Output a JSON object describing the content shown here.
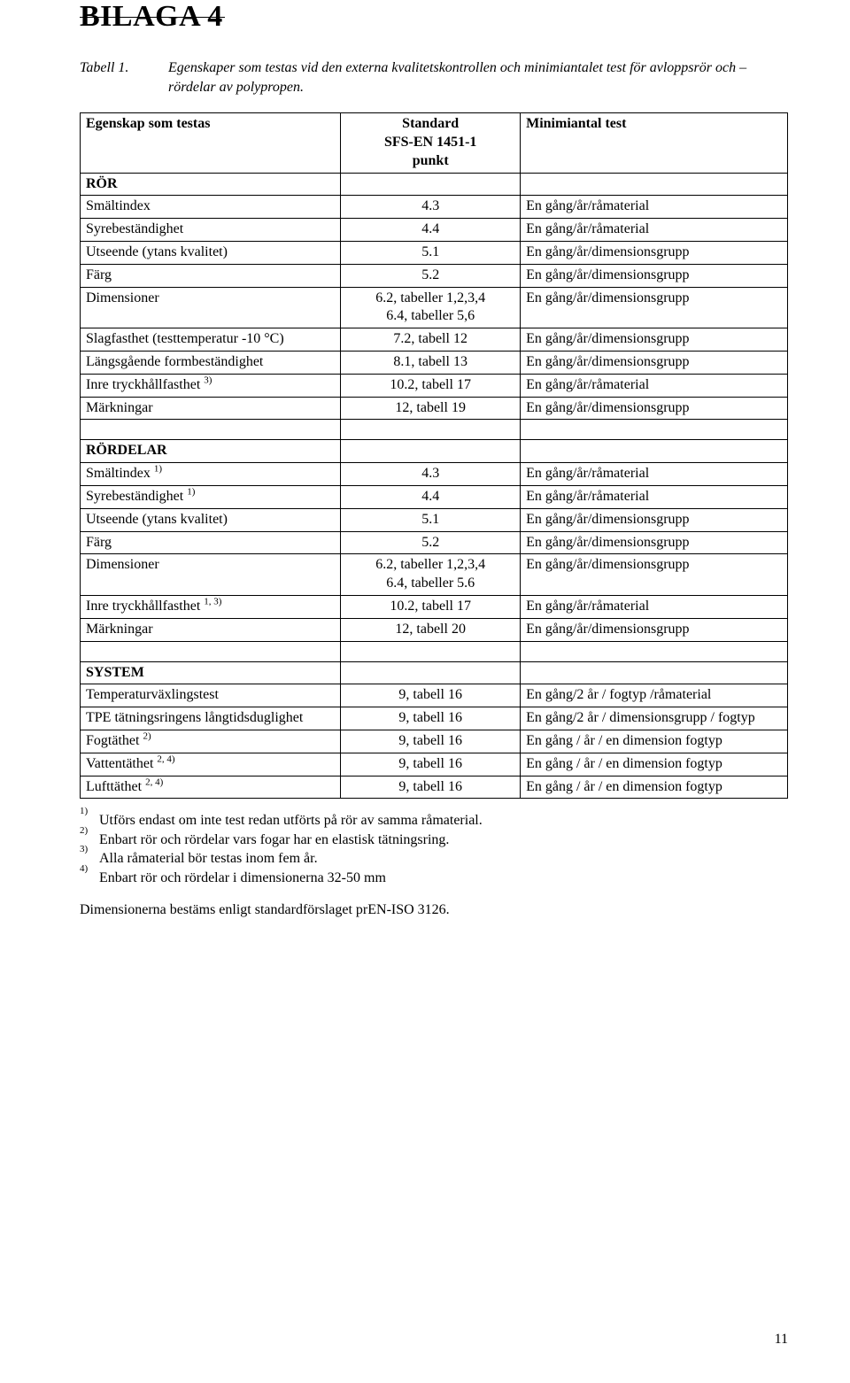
{
  "colors": {
    "text": "#000000",
    "background": "#ffffff",
    "border": "#000000"
  },
  "typography": {
    "font_family": "Times New Roman",
    "body_size_pt": 12,
    "h1_size_pt": 26
  },
  "appendix_title": "BILAGA 4",
  "caption": {
    "label": "Tabell 1.",
    "text": "Egenskaper som testas vid den externa kvalitetskontrollen och minimiantalet test för avloppsrör och –rördelar av polypropen."
  },
  "table": {
    "columns": [
      {
        "label": "Egenskap som testas",
        "width_pct": 37,
        "align": "left"
      },
      {
        "label": "Standard\nSFS-EN 1451-1\npunkt",
        "width_pct": 25,
        "align": "center"
      },
      {
        "label": "Minimiantal test",
        "width_pct": 38,
        "align": "left"
      }
    ],
    "ror_heading": "RÖR",
    "ror_rows": [
      {
        "c0": "Smältindex",
        "c1": "4.3",
        "c2": "En gång/år/råmaterial"
      },
      {
        "c0": "Syrebeständighet",
        "c1": "4.4",
        "c2": "En gång/år/råmaterial"
      },
      {
        "c0": "Utseende (ytans kvalitet)",
        "c1": "5.1",
        "c2": "En gång/år/dimensionsgrupp"
      },
      {
        "c0": "Färg",
        "c1": "5.2",
        "c2": "En gång/år/dimensionsgrupp"
      },
      {
        "c0": "Dimensioner",
        "c1": "6.2, tabeller 1,2,3,4\n6.4, tabeller 5,6",
        "c2": "En gång/år/dimensionsgrupp"
      },
      {
        "c0": "Slagfasthet (testtemperatur -10 °C)",
        "c1": "7.2, tabell 12",
        "c2": "En gång/år/dimensionsgrupp"
      },
      {
        "c0": "Längsgående formbeständighet",
        "c1": "8.1, tabell 13",
        "c2": "En gång/år/dimensionsgrupp"
      },
      {
        "c0": "Inre tryckhållfasthet",
        "sup0": "3)",
        "c1": "10.2, tabell 17",
        "c2": "En gång/år/råmaterial"
      },
      {
        "c0": "Märkningar",
        "c1": "12, tabell 19",
        "c2": "En gång/år/dimensionsgrupp"
      }
    ],
    "rordelar_heading": "RÖRDELAR",
    "rordelar_rows": [
      {
        "c0": "Smältindex",
        "sup0": "1)",
        "c1": "4.3",
        "c2": "En gång/år/råmaterial"
      },
      {
        "c0": "Syrebeständighet",
        "sup0": "1)",
        "c1": "4.4",
        "c2": "En gång/år/råmaterial"
      },
      {
        "c0": "Utseende (ytans kvalitet)",
        "c1": "5.1",
        "c2": "En gång/år/dimensionsgrupp"
      },
      {
        "c0": "Färg",
        "c1": "5.2",
        "c2": "En gång/år/dimensionsgrupp"
      },
      {
        "c0": "Dimensioner",
        "c1": "6.2, tabeller 1,2,3,4\n6.4, tabeller 5.6",
        "c2": "En gång/år/dimensionsgrupp"
      },
      {
        "c0": "Inre tryckhållfasthet",
        "sup0": "1, 3)",
        "c1": "10.2, tabell 17",
        "c2": "En gång/år/råmaterial"
      },
      {
        "c0": "Märkningar",
        "c1": "12, tabell 20",
        "c2": "En gång/år/dimensionsgrupp"
      }
    ],
    "system_heading": "SYSTEM",
    "system_rows": [
      {
        "c0": "Temperaturväxlingstest",
        "c1": "9, tabell 16",
        "c2": "En gång/2 år / fogtyp /råmaterial"
      },
      {
        "c0": "TPE tätningsringens långtidsduglighet",
        "c1": "9, tabell 16",
        "c2": "En gång/2 år / dimensionsgrupp / fogtyp"
      },
      {
        "c0": "Fogtäthet",
        "sup0": "2)",
        "c1": "9, tabell 16",
        "c2": "En gång / år / en dimension fogtyp"
      },
      {
        "c0": "Vattentäthet",
        "sup0": "2, 4)",
        "c1": "9, tabell 16",
        "c2": "En gång / år / en dimension fogtyp"
      },
      {
        "c0": "Lufttäthet",
        "sup0": "2, 4)",
        "c1": "9, tabell 16",
        "c2": "En gång / år / en dimension fogtyp"
      }
    ]
  },
  "footnotes": [
    {
      "mark": "1)",
      "text": "Utförs endast om inte test redan utförts på rör av samma råmaterial."
    },
    {
      "mark": "2)",
      "text": "Enbart rör och rördelar vars fogar har en elastisk tätningsring."
    },
    {
      "mark": "3)",
      "text": "Alla råmaterial bör testas inom fem år."
    },
    {
      "mark": "4)",
      "text": "Enbart rör och rördelar i dimensionerna 32-50 mm"
    }
  ],
  "closing": "Dimensionerna bestäms enligt standardförslaget prEN-ISO 3126.",
  "page_number": "11"
}
